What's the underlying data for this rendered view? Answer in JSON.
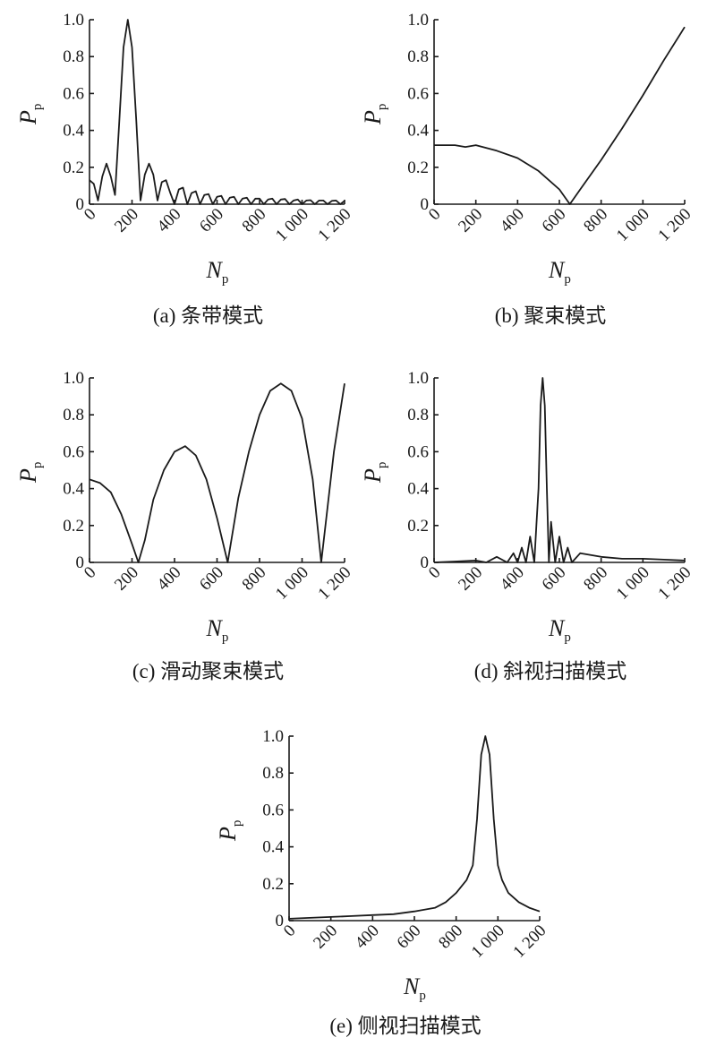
{
  "chart_data": [
    {
      "id": "a",
      "type": "line",
      "caption": "(a) 条带模式",
      "xlabel": "N",
      "xlabel_sub": "p",
      "ylabel": "P",
      "ylabel_sub": "p",
      "xlim": [
        0,
        1200
      ],
      "ylim": [
        0,
        1.0
      ],
      "xticks": [
        "0",
        "200",
        "400",
        "600",
        "800",
        "1 000",
        "1 200"
      ],
      "yticks": [
        "0",
        "0.2",
        "0.4",
        "0.6",
        "0.8",
        "1.0"
      ],
      "colors": {
        "line": "#1a1a1a"
      },
      "series": [
        {
          "x": [
            0,
            20,
            40,
            60,
            80,
            100,
            120,
            140,
            160,
            180,
            200,
            220,
            240,
            260,
            280,
            300,
            320,
            340,
            360,
            380,
            400,
            420,
            440,
            460,
            480,
            500,
            520,
            540,
            560,
            580,
            600,
            620,
            640,
            660,
            680,
            700,
            720,
            740,
            760,
            780,
            800,
            820,
            840,
            860,
            880,
            900,
            920,
            940,
            960,
            980,
            1000,
            1020,
            1040,
            1060,
            1080,
            1100,
            1120,
            1140,
            1160,
            1180,
            1200
          ],
          "y": [
            0.13,
            0.11,
            0.02,
            0.15,
            0.22,
            0.15,
            0.05,
            0.45,
            0.85,
            1.0,
            0.85,
            0.45,
            0.02,
            0.16,
            0.22,
            0.16,
            0.02,
            0.12,
            0.13,
            0.06,
            0.0,
            0.08,
            0.09,
            0.0,
            0.06,
            0.07,
            0.0,
            0.05,
            0.055,
            0.0,
            0.04,
            0.045,
            0.0,
            0.035,
            0.04,
            0.0,
            0.03,
            0.035,
            0.0,
            0.03,
            0.03,
            0.0,
            0.025,
            0.03,
            0.0,
            0.025,
            0.028,
            0.0,
            0.02,
            0.025,
            0.0,
            0.02,
            0.022,
            0.0,
            0.02,
            0.02,
            0.0,
            0.018,
            0.02,
            0.0,
            0.018
          ]
        }
      ]
    },
    {
      "id": "b",
      "type": "line",
      "caption": "(b) 聚束模式",
      "xlabel": "N",
      "xlabel_sub": "p",
      "ylabel": "P",
      "ylabel_sub": "p",
      "xlim": [
        0,
        1200
      ],
      "ylim": [
        0,
        1.0
      ],
      "xticks": [
        "0",
        "200",
        "400",
        "600",
        "800",
        "1 000",
        "1 200"
      ],
      "yticks": [
        "0",
        "0.2",
        "0.4",
        "0.6",
        "0.8",
        "1.0"
      ],
      "colors": {
        "line": "#1a1a1a"
      },
      "series": [
        {
          "x": [
            0,
            100,
            150,
            200,
            300,
            400,
            500,
            600,
            650,
            700,
            800,
            900,
            1000,
            1100,
            1200
          ],
          "y": [
            0.32,
            0.32,
            0.31,
            0.32,
            0.29,
            0.25,
            0.18,
            0.08,
            0.0,
            0.08,
            0.24,
            0.41,
            0.59,
            0.78,
            0.96
          ]
        }
      ]
    },
    {
      "id": "c",
      "type": "line",
      "caption": "(c) 滑动聚束模式",
      "xlabel": "N",
      "xlabel_sub": "p",
      "ylabel": "P",
      "ylabel_sub": "p",
      "xlim": [
        0,
        1200
      ],
      "ylim": [
        0,
        1.0
      ],
      "xticks": [
        "0",
        "200",
        "400",
        "600",
        "800",
        "1 000",
        "1 200"
      ],
      "yticks": [
        "0",
        "0.2",
        "0.4",
        "0.6",
        "0.8",
        "1.0"
      ],
      "colors": {
        "line": "#1a1a1a"
      },
      "series": [
        {
          "x": [
            0,
            50,
            100,
            150,
            200,
            230,
            260,
            300,
            350,
            400,
            450,
            500,
            550,
            600,
            650,
            700,
            750,
            800,
            850,
            900,
            950,
            1000,
            1050,
            1090,
            1120,
            1150,
            1200
          ],
          "y": [
            0.45,
            0.43,
            0.38,
            0.26,
            0.1,
            0.0,
            0.12,
            0.34,
            0.5,
            0.6,
            0.63,
            0.58,
            0.45,
            0.24,
            0.0,
            0.35,
            0.6,
            0.8,
            0.93,
            0.97,
            0.93,
            0.78,
            0.45,
            0.0,
            0.3,
            0.6,
            0.97
          ]
        }
      ]
    },
    {
      "id": "d",
      "type": "line",
      "caption": "(d) 斜视扫描模式",
      "xlabel": "N",
      "xlabel_sub": "p",
      "ylabel": "P",
      "ylabel_sub": "p",
      "xlim": [
        0,
        1200
      ],
      "ylim": [
        0,
        1.0
      ],
      "xticks": [
        "0",
        "200",
        "400",
        "600",
        "800",
        "1 000",
        "1 200"
      ],
      "yticks": [
        "0",
        "0.2",
        "0.4",
        "0.6",
        "0.8",
        "1.0"
      ],
      "colors": {
        "line": "#1a1a1a"
      },
      "series": [
        {
          "x": [
            0,
            100,
            200,
            250,
            300,
            350,
            380,
            400,
            420,
            440,
            460,
            480,
            490,
            500,
            510,
            520,
            530,
            540,
            550,
            560,
            580,
            600,
            620,
            640,
            660,
            700,
            800,
            900,
            1000,
            1100,
            1200
          ],
          "y": [
            0.0,
            0.005,
            0.01,
            0.0,
            0.03,
            0.0,
            0.05,
            0.0,
            0.08,
            0.0,
            0.14,
            0.0,
            0.2,
            0.4,
            0.85,
            1.0,
            0.85,
            0.4,
            0.0,
            0.22,
            0.0,
            0.14,
            0.0,
            0.08,
            0.0,
            0.05,
            0.03,
            0.02,
            0.02,
            0.015,
            0.01
          ]
        }
      ]
    },
    {
      "id": "e",
      "type": "line",
      "caption": "(e) 侧视扫描模式",
      "xlabel": "N",
      "xlabel_sub": "p",
      "ylabel": "P",
      "ylabel_sub": "p",
      "xlim": [
        0,
        1200
      ],
      "ylim": [
        0,
        1.0
      ],
      "xticks": [
        "0",
        "200",
        "400",
        "600",
        "800",
        "1 000",
        "1 200"
      ],
      "yticks": [
        "0",
        "0.2",
        "0.4",
        "0.6",
        "0.8",
        "1.0"
      ],
      "colors": {
        "line": "#1a1a1a"
      },
      "series": [
        {
          "x": [
            0,
            100,
            200,
            300,
            400,
            500,
            600,
            700,
            750,
            800,
            850,
            880,
            900,
            920,
            940,
            960,
            980,
            1000,
            1020,
            1050,
            1100,
            1150,
            1200
          ],
          "y": [
            0.01,
            0.015,
            0.02,
            0.025,
            0.03,
            0.035,
            0.05,
            0.07,
            0.1,
            0.15,
            0.22,
            0.3,
            0.55,
            0.9,
            1.0,
            0.9,
            0.55,
            0.3,
            0.22,
            0.15,
            0.1,
            0.07,
            0.05
          ]
        }
      ]
    }
  ]
}
